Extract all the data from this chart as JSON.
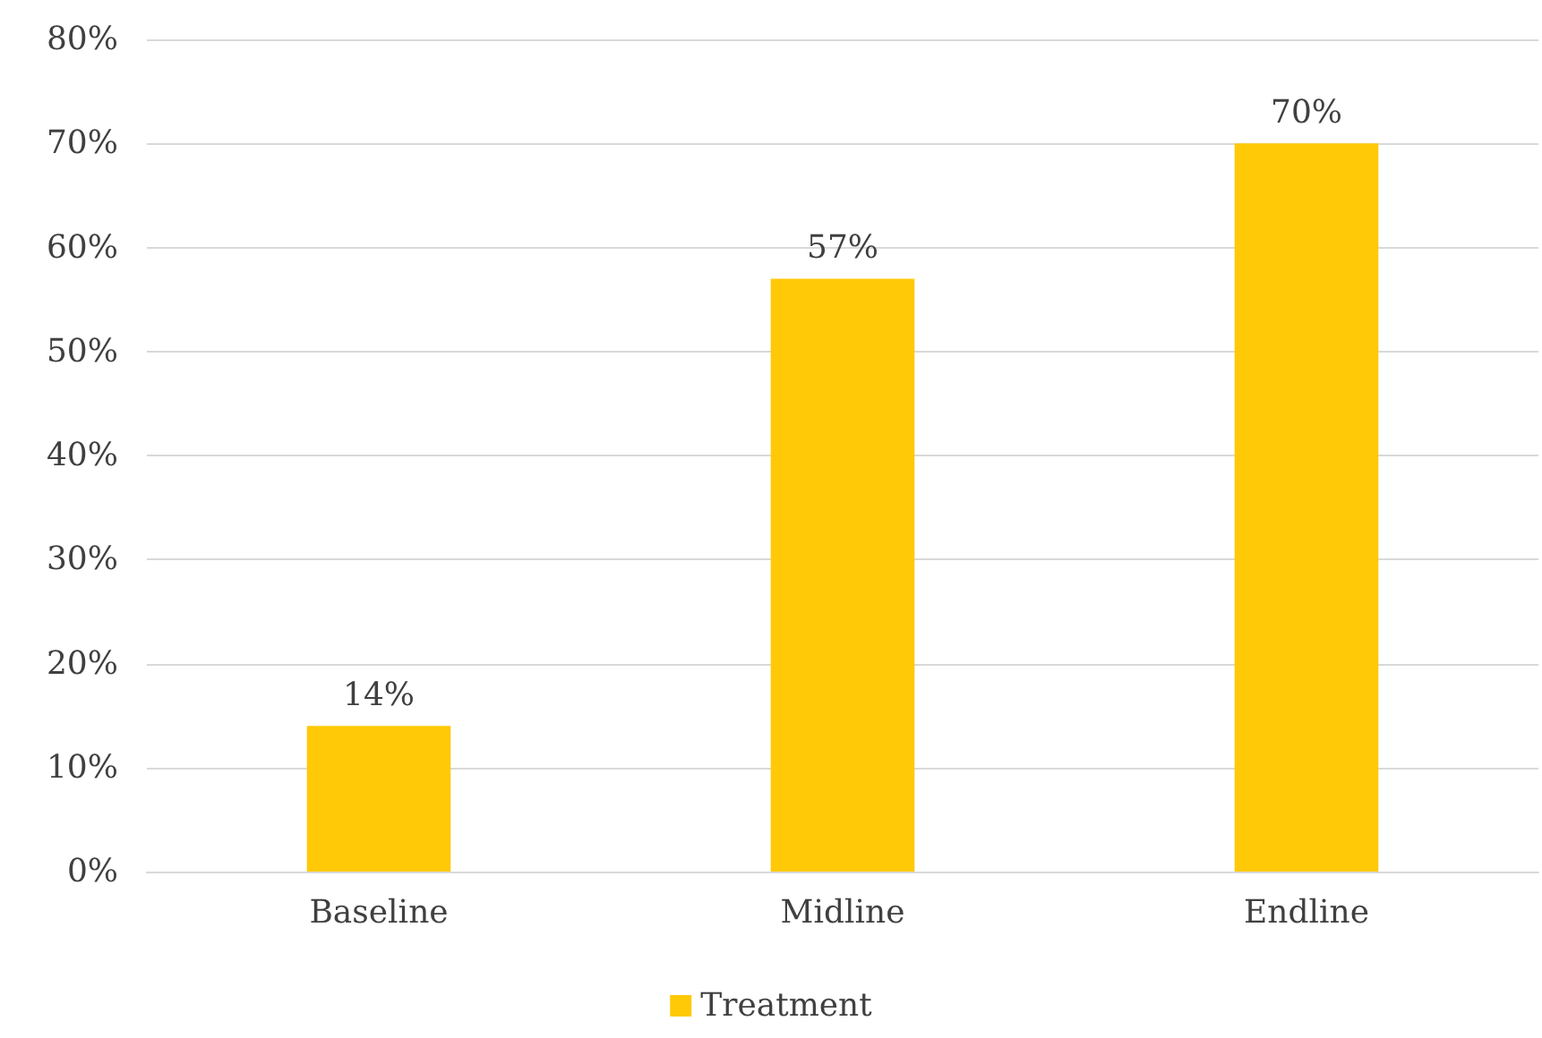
{
  "chart_data": {
    "type": "bar",
    "categories": [
      "Baseline",
      "Midline",
      "Endline"
    ],
    "series": [
      {
        "name": "Treatment",
        "color": "#ffc907",
        "values": [
          14,
          57,
          70
        ],
        "value_labels": [
          "14%",
          "57%",
          "70%"
        ]
      }
    ],
    "ylim": [
      0,
      80
    ],
    "yticks": [
      {
        "value": 0,
        "label": "0%"
      },
      {
        "value": 10,
        "label": "10%"
      },
      {
        "value": 20,
        "label": "20%"
      },
      {
        "value": 30,
        "label": "30%"
      },
      {
        "value": 40,
        "label": "40%"
      },
      {
        "value": 50,
        "label": "50%"
      },
      {
        "value": 60,
        "label": "60%"
      },
      {
        "value": 70,
        "label": "70%"
      },
      {
        "value": 80,
        "label": "80%"
      }
    ],
    "grid": "y",
    "legend": "bottom"
  }
}
